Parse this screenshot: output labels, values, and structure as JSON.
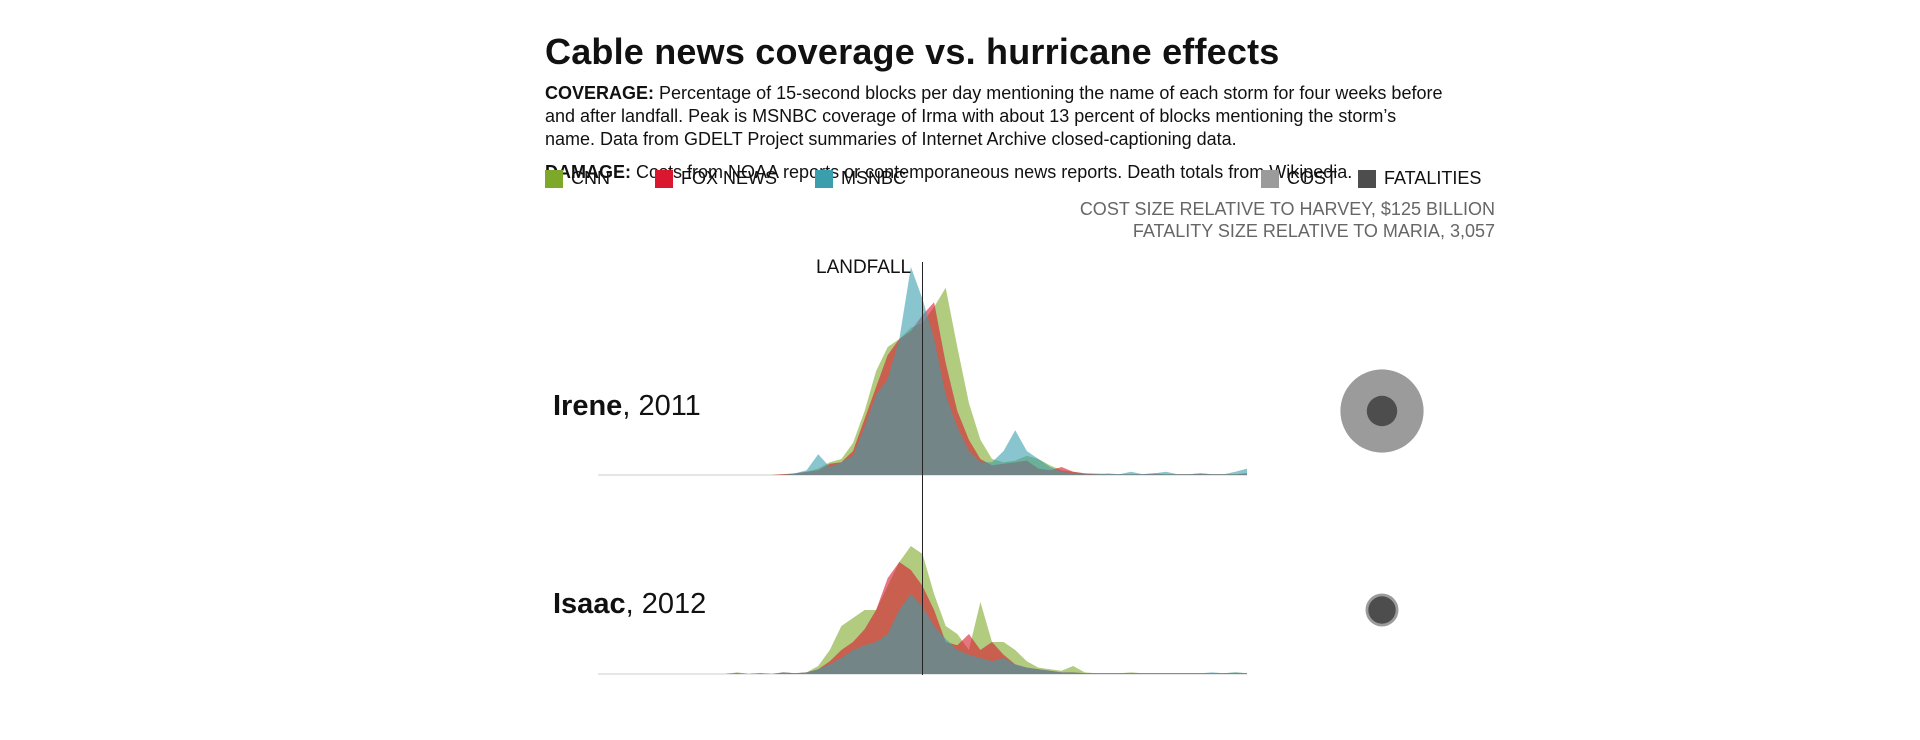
{
  "header": {
    "title": "Cable news coverage vs. hurricane effects",
    "coverage_label": "COVERAGE:",
    "coverage_text": "Percentage of 15-second blocks per day mentioning the name of each storm for four weeks before and after landfall. Peak is MSNBC coverage of Irma with about 13 percent of blocks mentioning the storm’s name. Data from GDELT Project summaries of Internet Archive closed-captioning data.",
    "damage_label": "DAMAGE:",
    "damage_text": "Costs from NOAA reports or contemporaneous news reports. Death totals from Wikipedia."
  },
  "legend": {
    "networks": [
      {
        "name": "CNN",
        "color": "#7da82a"
      },
      {
        "name": "FOX NEWS",
        "color": "#d9172f"
      },
      {
        "name": "MSNBC",
        "color": "#3a9ead"
      }
    ],
    "effects": [
      {
        "name": "COST",
        "color": "#9b9b9b"
      },
      {
        "name": "FATALITIES",
        "color": "#4d4d4d"
      }
    ],
    "cost_note": "COST SIZE RELATIVE TO HARVEY, $125 BILLION",
    "fatality_note": "FATALITY SIZE RELATIVE TO MARIA, 3,057"
  },
  "landfall_label": "LANDFALL",
  "chart_data": {
    "type": "area",
    "x_label": "",
    "y_label": "",
    "x_description": "days relative to landfall",
    "x": [
      -28,
      -27,
      -26,
      -25,
      -24,
      -23,
      -22,
      -21,
      -20,
      -19,
      -18,
      -17,
      -16,
      -15,
      -14,
      -13,
      -12,
      -11,
      -10,
      -9,
      -8,
      -7,
      -6,
      -5,
      -4,
      -3,
      -2,
      -1,
      0,
      1,
      2,
      3,
      4,
      5,
      6,
      7,
      8,
      9,
      10,
      11,
      12,
      13,
      14,
      15,
      16,
      17,
      18,
      19,
      20,
      21,
      22,
      23,
      24,
      25,
      26,
      27,
      28
    ],
    "storms": [
      {
        "name": "Irene",
        "year": "2011",
        "cost_relative": 0.12,
        "fatality_relative": 0.016,
        "series": [
          {
            "name": "CNN",
            "values": [
              0,
              0,
              0,
              0,
              0,
              0,
              0,
              0,
              0,
              0,
              0,
              0,
              0,
              0,
              0,
              0,
              0.05,
              0.1,
              0.2,
              0.4,
              0.8,
              1.0,
              2.0,
              4.0,
              6.5,
              8.0,
              8.5,
              9.2,
              9.5,
              10.5,
              11.7,
              8.0,
              4.5,
              2.2,
              1.0,
              0.8,
              0.9,
              1.2,
              1.0,
              0.6,
              0.3,
              0.2,
              0.1,
              0.1,
              0.05,
              0.05,
              0.05,
              0.05,
              0.05,
              0.05,
              0.05,
              0.05,
              0.05,
              0.05,
              0.05,
              0.05,
              0.1
            ]
          },
          {
            "name": "FOX NEWS",
            "values": [
              0,
              0,
              0,
              0,
              0,
              0,
              0,
              0,
              0,
              0,
              0,
              0,
              0,
              0,
              0,
              0,
              0.05,
              0.1,
              0.2,
              0.3,
              0.7,
              0.8,
              1.5,
              3.5,
              5.5,
              7.5,
              8.5,
              9.0,
              10.0,
              10.8,
              7.0,
              4.0,
              2.2,
              1.0,
              0.6,
              0.7,
              0.8,
              0.9,
              0.4,
              0.3,
              0.5,
              0.2,
              0.1,
              0.05,
              0.05,
              0.05,
              0.05,
              0.05,
              0.1,
              0.05,
              0.05,
              0.05,
              0.1,
              0.05,
              0.05,
              0.05,
              0.1
            ]
          },
          {
            "name": "MSNBC",
            "values": [
              0,
              0,
              0,
              0,
              0,
              0,
              0,
              0,
              0,
              0,
              0,
              0,
              0,
              0,
              0,
              0,
              0,
              0.1,
              0.3,
              1.3,
              0.5,
              0.8,
              1.2,
              3.0,
              5.0,
              6.0,
              8.5,
              13.0,
              11.0,
              8.5,
              5.0,
              3.0,
              1.5,
              0.8,
              0.8,
              1.5,
              2.8,
              1.5,
              1.0,
              0.5,
              0.2,
              0.1,
              0.05,
              0.05,
              0.1,
              0.05,
              0.2,
              0.05,
              0.1,
              0.2,
              0.05,
              0.05,
              0.1,
              0.05,
              0.05,
              0.2,
              0.4
            ]
          }
        ]
      },
      {
        "name": "Isaac",
        "year": "2012",
        "cost_relative": 0.019,
        "fatality_relative": 0.013,
        "series": [
          {
            "name": "CNN",
            "values": [
              0,
              0,
              0,
              0,
              0,
              0,
              0,
              0,
              0,
              0,
              0,
              0,
              0.1,
              0,
              0.05,
              0,
              0.1,
              0.05,
              0.1,
              0.5,
              1.5,
              3.0,
              3.5,
              4.0,
              4.0,
              5.5,
              7.0,
              8.0,
              7.5,
              5.0,
              3.0,
              2.5,
              1.5,
              4.5,
              2.0,
              2.0,
              1.5,
              0.8,
              0.4,
              0.3,
              0.2,
              0.5,
              0.1,
              0.05,
              0.05,
              0.05,
              0.1,
              0.05,
              0.05,
              0.05,
              0.05,
              0.05,
              0.05,
              0.05,
              0.05,
              0.1,
              0.05
            ]
          },
          {
            "name": "FOX NEWS",
            "values": [
              0,
              0,
              0,
              0,
              0,
              0,
              0,
              0,
              0,
              0,
              0,
              0,
              0.05,
              0,
              0.05,
              0,
              0.1,
              0.05,
              0.1,
              0.3,
              0.8,
              1.5,
              2.0,
              2.8,
              4.0,
              6.0,
              7.0,
              6.5,
              5.5,
              4.0,
              2.0,
              1.8,
              2.5,
              1.5,
              2.0,
              1.2,
              0.6,
              0.4,
              0.3,
              0.2,
              0.1,
              0.1,
              0.05,
              0.05,
              0.05,
              0.05,
              0.05,
              0.05,
              0.05,
              0.05,
              0.05,
              0.05,
              0.05,
              0.05,
              0.05,
              0.05,
              0.05
            ]
          },
          {
            "name": "MSNBC",
            "values": [
              0,
              0,
              0,
              0,
              0,
              0,
              0,
              0,
              0,
              0,
              0,
              0,
              0.05,
              0,
              0.05,
              0,
              0.1,
              0.05,
              0.1,
              0.3,
              0.6,
              1.0,
              1.5,
              1.8,
              2.0,
              2.5,
              4.0,
              5.0,
              4.2,
              3.0,
              2.2,
              1.5,
              1.2,
              1.0,
              0.8,
              1.0,
              0.6,
              0.4,
              0.3,
              0.2,
              0.1,
              0.1,
              0.05,
              0.05,
              0.05,
              0.05,
              0.05,
              0.05,
              0.05,
              0.05,
              0.05,
              0.05,
              0.05,
              0.1,
              0.05,
              0.1,
              0.05
            ]
          }
        ]
      }
    ]
  }
}
